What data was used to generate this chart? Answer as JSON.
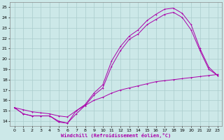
{
  "xlabel": "Windchill (Refroidissement éolien,°C)",
  "xlim": [
    -0.5,
    23.5
  ],
  "ylim": [
    13.5,
    25.5
  ],
  "xticks": [
    0,
    1,
    2,
    3,
    4,
    5,
    6,
    7,
    8,
    9,
    10,
    11,
    12,
    13,
    14,
    15,
    16,
    17,
    18,
    19,
    20,
    21,
    22,
    23
  ],
  "yticks": [
    14,
    15,
    16,
    17,
    18,
    19,
    20,
    21,
    22,
    23,
    24,
    25
  ],
  "bg_color": "#cce8e8",
  "line_color": "#aa00aa",
  "grid_color": "#aacccc",
  "line1_x": [
    0,
    1,
    2,
    3,
    4,
    5,
    6,
    7,
    8,
    9,
    10,
    11,
    12,
    13,
    14,
    15,
    16,
    17,
    18,
    19,
    20,
    21,
    22,
    23
  ],
  "line1_y": [
    15.3,
    14.7,
    14.5,
    14.5,
    14.5,
    13.9,
    13.8,
    14.7,
    15.5,
    16.5,
    17.2,
    19.3,
    20.8,
    21.9,
    22.4,
    23.3,
    23.8,
    24.3,
    24.5,
    24.0,
    22.8,
    20.8,
    19.0,
    18.4
  ],
  "line2_x": [
    0,
    1,
    2,
    3,
    4,
    5,
    6,
    7,
    8,
    9,
    10,
    11,
    12,
    13,
    14,
    15,
    16,
    17,
    18,
    19,
    20,
    21,
    22,
    23
  ],
  "line2_y": [
    15.3,
    14.7,
    14.5,
    14.5,
    14.5,
    14.0,
    13.8,
    15.0,
    15.6,
    16.7,
    17.5,
    19.8,
    21.2,
    22.2,
    22.8,
    23.7,
    24.3,
    24.8,
    24.9,
    24.4,
    23.3,
    21.0,
    19.2,
    18.4
  ],
  "line3_x": [
    0,
    1,
    2,
    3,
    4,
    5,
    6,
    7,
    8,
    9,
    10,
    11,
    12,
    13,
    14,
    15,
    16,
    17,
    18,
    19,
    20,
    21,
    22,
    23
  ],
  "line3_y": [
    15.3,
    15.1,
    14.9,
    14.8,
    14.7,
    14.5,
    14.4,
    15.0,
    15.5,
    16.0,
    16.3,
    16.7,
    17.0,
    17.2,
    17.4,
    17.6,
    17.8,
    17.9,
    18.0,
    18.1,
    18.2,
    18.3,
    18.4,
    18.5
  ]
}
